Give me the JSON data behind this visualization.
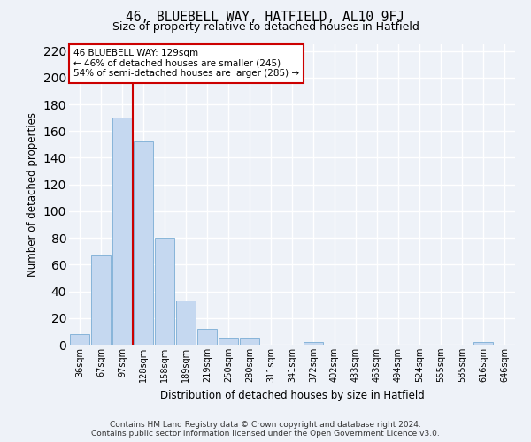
{
  "title": "46, BLUEBELL WAY, HATFIELD, AL10 9FJ",
  "subtitle": "Size of property relative to detached houses in Hatfield",
  "xlabel": "Distribution of detached houses by size in Hatfield",
  "ylabel": "Number of detached properties",
  "categories": [
    "36sqm",
    "67sqm",
    "97sqm",
    "128sqm",
    "158sqm",
    "189sqm",
    "219sqm",
    "250sqm",
    "280sqm",
    "311sqm",
    "341sqm",
    "372sqm",
    "402sqm",
    "433sqm",
    "463sqm",
    "494sqm",
    "524sqm",
    "555sqm",
    "585sqm",
    "616sqm",
    "646sqm"
  ],
  "values": [
    8,
    67,
    170,
    152,
    80,
    33,
    12,
    5,
    5,
    0,
    0,
    2,
    0,
    0,
    0,
    0,
    0,
    0,
    0,
    2,
    0
  ],
  "bar_color": "#c5d8f0",
  "bar_edge_color": "#7aadd4",
  "annotation_title": "46 BLUEBELL WAY: 129sqm",
  "annotation_line1": "← 46% of detached houses are smaller (245)",
  "annotation_line2": "54% of semi-detached houses are larger (285) →",
  "annotation_box_color": "#ffffff",
  "annotation_box_edge": "#cc0000",
  "vline_color": "#cc0000",
  "background_color": "#eef2f8",
  "grid_color": "#ffffff",
  "ylim": [
    0,
    225
  ],
  "yticks": [
    0,
    20,
    40,
    60,
    80,
    100,
    120,
    140,
    160,
    180,
    200,
    220
  ],
  "footer1": "Contains HM Land Registry data © Crown copyright and database right 2024.",
  "footer2": "Contains public sector information licensed under the Open Government Licence v3.0."
}
